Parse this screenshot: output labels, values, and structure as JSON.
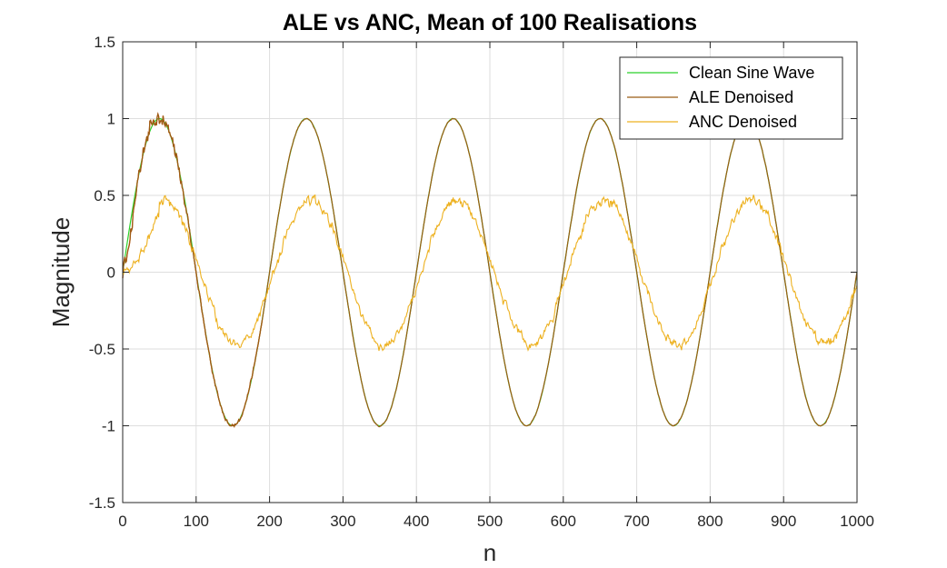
{
  "chart_data": {
    "type": "line",
    "title": "ALE vs ANC, Mean of 100 Realisations",
    "xlabel": "n",
    "ylabel": "Magnitude",
    "xlim": [
      0,
      1000
    ],
    "ylim": [
      -1.5,
      1.5
    ],
    "xticks": [
      0,
      100,
      200,
      300,
      400,
      500,
      600,
      700,
      800,
      900,
      1000
    ],
    "yticks": [
      -1.5,
      -1,
      -0.5,
      0,
      0.5,
      1,
      1.5
    ],
    "xtick_labels": [
      "0",
      "100",
      "200",
      "300",
      "400",
      "500",
      "600",
      "700",
      "800",
      "900",
      "1000"
    ],
    "ytick_labels": [
      "-1.5",
      "-1",
      "-0.5",
      "0",
      "0.5",
      "1",
      "1.5"
    ],
    "grid": true,
    "legend_position": "top-right",
    "sine_period": 200,
    "series": [
      {
        "name": "Clean Sine Wave",
        "color": "#2bd12b",
        "x": [
          0,
          50,
          100,
          150,
          200,
          250,
          300,
          350,
          400,
          450,
          500,
          550,
          600,
          650,
          700,
          750,
          800,
          850,
          900,
          950,
          1000
        ],
        "y": [
          0,
          1,
          0,
          -1,
          0,
          1,
          0,
          -1,
          0,
          1,
          0,
          -1,
          0,
          1,
          0,
          -1,
          0,
          1,
          0,
          -1,
          0
        ]
      },
      {
        "name": "ALE Denoised",
        "color": "#9a5c14",
        "x": [
          0,
          20,
          50,
          100,
          150,
          200,
          250,
          300,
          350,
          400,
          450,
          500,
          550,
          600,
          650,
          700,
          750,
          800,
          850,
          900,
          950,
          1000
        ],
        "y": [
          0,
          0.55,
          1.0,
          0,
          -1.0,
          0,
          1.0,
          0,
          -0.99,
          0,
          0.99,
          0,
          -0.99,
          0,
          0.99,
          0,
          -0.99,
          0,
          0.99,
          0,
          -0.99,
          0
        ]
      },
      {
        "name": "ANC Denoised",
        "color": "#edb120",
        "x": [
          0,
          25,
          50,
          100,
          150,
          200,
          250,
          300,
          350,
          400,
          450,
          500,
          550,
          600,
          650,
          700,
          750,
          800,
          850,
          900,
          950,
          1000
        ],
        "y": [
          0,
          0.1,
          0.4,
          0,
          -0.48,
          0,
          0.45,
          0,
          -0.5,
          0,
          0.5,
          0,
          -0.48,
          0,
          0.48,
          0,
          -0.48,
          0,
          0.5,
          0,
          -0.47,
          0
        ]
      }
    ],
    "ale_noise_color": "#d95319"
  }
}
